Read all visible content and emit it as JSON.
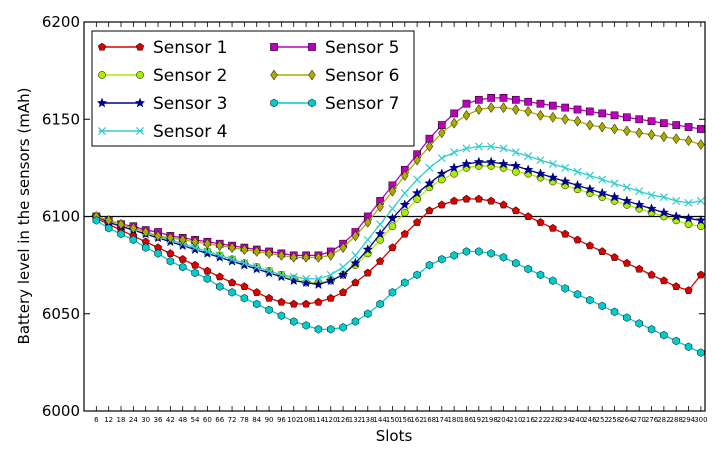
{
  "chart_data": {
    "type": "line",
    "xlabel": "Slots",
    "ylabel": "Battery level in the sensors (mAh)",
    "xlim": [
      0,
      302
    ],
    "ylim": [
      6000,
      6200
    ],
    "y_ticks": [
      6000,
      6050,
      6100,
      6150,
      6200
    ],
    "x_ticks": [
      6,
      12,
      18,
      24,
      30,
      36,
      42,
      48,
      54,
      60,
      66,
      72,
      78,
      84,
      90,
      96,
      102,
      108,
      114,
      120,
      126,
      132,
      138,
      144,
      150,
      156,
      162,
      168,
      174,
      180,
      186,
      192,
      198,
      204,
      210,
      216,
      222,
      228,
      234,
      240,
      246,
      252,
      258,
      264,
      270,
      276,
      282,
      288,
      294,
      300
    ],
    "x_tick_labels": [
      "6",
      "12",
      "18",
      "24",
      "30",
      "36",
      "42",
      "48",
      "54",
      "60",
      "66",
      "72",
      "78",
      "84",
      "90",
      "96",
      "102",
      "108",
      "114",
      "120",
      "126",
      "132",
      "138",
      "144",
      "150",
      "156",
      "162",
      "168",
      "174",
      "180",
      "186",
      "192",
      "198",
      "204",
      "210",
      "216",
      "222",
      "228",
      "234",
      "240",
      "246",
      "252",
      "258",
      "264",
      "270",
      "276",
      "282",
      "288",
      "294",
      "300"
    ],
    "reference_line": 6100,
    "grid": false,
    "legend_position": "top-left",
    "x": [
      6,
      12,
      18,
      24,
      30,
      36,
      42,
      48,
      54,
      60,
      66,
      72,
      78,
      84,
      90,
      96,
      102,
      108,
      114,
      120,
      126,
      132,
      138,
      144,
      150,
      156,
      162,
      168,
      174,
      180,
      186,
      192,
      198,
      204,
      210,
      216,
      222,
      228,
      234,
      240,
      246,
      252,
      258,
      264,
      270,
      276,
      282,
      288,
      294,
      300
    ],
    "series": [
      {
        "name": "Sensor 1",
        "color": "#dd0000",
        "marker": "pentagon",
        "values": [
          6099,
          6096,
          6093,
          6090,
          6087,
          6084,
          6081,
          6078,
          6075,
          6072,
          6069,
          6066,
          6064,
          6061,
          6058,
          6056,
          6055,
          6055,
          6056,
          6058,
          6061,
          6066,
          6071,
          6077,
          6084,
          6091,
          6097,
          6103,
          6106,
          6108,
          6109,
          6109,
          6108,
          6106,
          6103,
          6100,
          6097,
          6094,
          6091,
          6088,
          6085,
          6082,
          6079,
          6076,
          6073,
          6070,
          6067,
          6064,
          6062,
          6070
        ]
      },
      {
        "name": "Sensor 2",
        "color": "#aaee00",
        "marker": "circle",
        "values": [
          6100,
          6098,
          6096,
          6094,
          6092,
          6090,
          6088,
          6086,
          6084,
          6082,
          6080,
          6078,
          6076,
          6074,
          6072,
          6070,
          6068,
          6066,
          6066,
          6067,
          6070,
          6075,
          6081,
          6088,
          6095,
          6102,
          6109,
          6115,
          6119,
          6122,
          6125,
          6126,
          6126,
          6125,
          6123,
          6122,
          6120,
          6118,
          6116,
          6114,
          6112,
          6110,
          6108,
          6106,
          6104,
          6102,
          6100,
          6098,
          6096,
          6095
        ]
      },
      {
        "name": "Sensor 3",
        "color": "#000088",
        "marker": "star",
        "values": [
          6100,
          6097,
          6095,
          6093,
          6091,
          6089,
          6087,
          6085,
          6083,
          6081,
          6079,
          6077,
          6075,
          6073,
          6071,
          6069,
          6067,
          6066,
          6065,
          6067,
          6070,
          6076,
          6083,
          6091,
          6099,
          6106,
          6112,
          6117,
          6122,
          6125,
          6127,
          6128,
          6128,
          6127,
          6126,
          6124,
          6122,
          6120,
          6118,
          6116,
          6114,
          6112,
          6110,
          6108,
          6106,
          6104,
          6102,
          6100,
          6099,
          6098
        ]
      },
      {
        "name": "Sensor 4",
        "color": "#33cccc",
        "marker": "x",
        "values": [
          6100,
          6098,
          6096,
          6094,
          6092,
          6090,
          6088,
          6086,
          6084,
          6082,
          6080,
          6078,
          6076,
          6074,
          6072,
          6070,
          6069,
          6068,
          6068,
          6070,
          6074,
          6080,
          6088,
          6096,
          6104,
          6112,
          6119,
          6125,
          6130,
          6133,
          6135,
          6136,
          6136,
          6135,
          6133,
          6131,
          6129,
          6127,
          6125,
          6123,
          6121,
          6119,
          6117,
          6115,
          6113,
          6111,
          6110,
          6108,
          6107,
          6108
        ]
      },
      {
        "name": "Sensor 5",
        "color": "#bb00bb",
        "marker": "square",
        "values": [
          6100,
          6098,
          6096,
          6095,
          6093,
          6092,
          6090,
          6089,
          6088,
          6087,
          6086,
          6085,
          6084,
          6083,
          6082,
          6081,
          6080,
          6080,
          6080,
          6082,
          6086,
          6092,
          6100,
          6108,
          6116,
          6124,
          6132,
          6140,
          6147,
          6153,
          6158,
          6160,
          6161,
          6161,
          6160,
          6159,
          6158,
          6157,
          6156,
          6155,
          6154,
          6153,
          6152,
          6151,
          6150,
          6149,
          6148,
          6147,
          6146,
          6145
        ]
      },
      {
        "name": "Sensor 6",
        "color": "#aaaa00",
        "marker": "diamond",
        "values": [
          6100,
          6098,
          6096,
          6094,
          6092,
          6090,
          6089,
          6088,
          6087,
          6086,
          6085,
          6084,
          6083,
          6082,
          6081,
          6080,
          6079,
          6079,
          6079,
          6080,
          6084,
          6090,
          6097,
          6105,
          6113,
          6121,
          6129,
          6136,
          6143,
          6148,
          6152,
          6155,
          6156,
          6156,
          6155,
          6154,
          6152,
          6151,
          6150,
          6149,
          6147,
          6146,
          6145,
          6144,
          6143,
          6142,
          6141,
          6140,
          6139,
          6137
        ]
      },
      {
        "name": "Sensor 7",
        "color": "#00cccc",
        "marker": "hexagon",
        "values": [
          6098,
          6094,
          6091,
          6088,
          6084,
          6081,
          6077,
          6074,
          6071,
          6068,
          6064,
          6061,
          6058,
          6055,
          6052,
          6049,
          6046,
          6044,
          6042,
          6042,
          6043,
          6046,
          6050,
          6055,
          6061,
          6066,
          6070,
          6075,
          6078,
          6080,
          6082,
          6082,
          6081,
          6079,
          6076,
          6073,
          6070,
          6067,
          6063,
          6060,
          6057,
          6054,
          6051,
          6048,
          6045,
          6042,
          6039,
          6036,
          6033,
          6030
        ]
      }
    ]
  }
}
